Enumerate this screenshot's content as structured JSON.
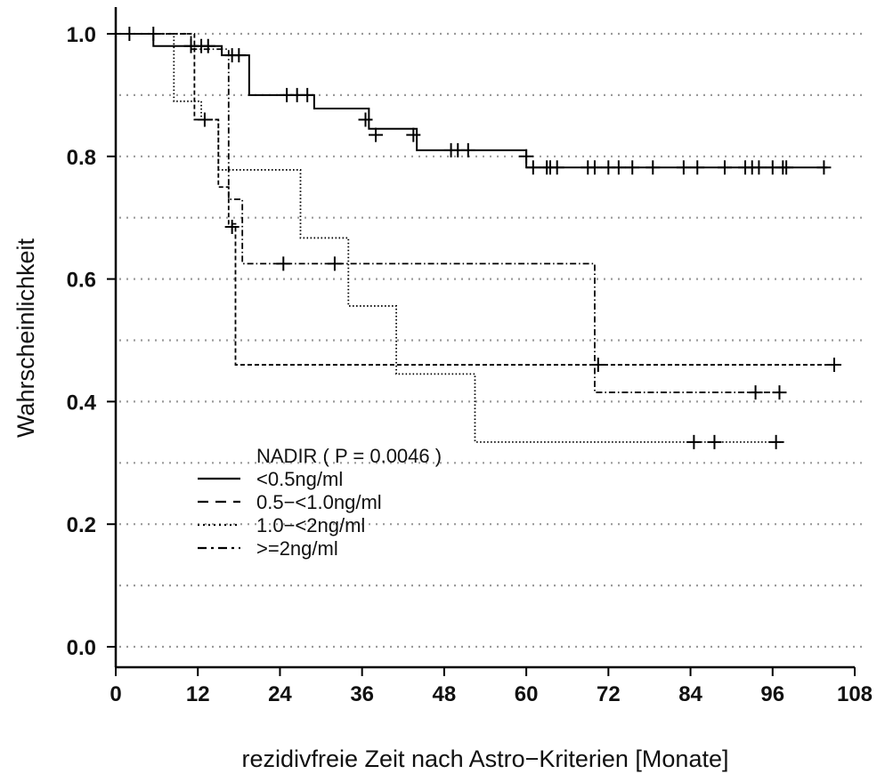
{
  "chart_data": {
    "type": "line",
    "subtype": "kaplan-meier",
    "title": "",
    "xlabel": "rezidivfreie Zeit nach Astro−Kriterien [Monate]",
    "ylabel": "Wahrscheinlichkeit",
    "xlim": [
      0,
      108
    ],
    "ylim": [
      0.0,
      1.0
    ],
    "x_ticks": [
      "0",
      "12",
      "24",
      "36",
      "48",
      "60",
      "72",
      "84",
      "96",
      "108"
    ],
    "y_ticks": [
      "0.0",
      "0.2",
      "0.4",
      "0.6",
      "0.8",
      "1.0"
    ],
    "grid": "horizontal-dotted",
    "legend_placement": "center-left",
    "legend_title": "NADIR ( P = 0.0046 )",
    "series": [
      {
        "name": "<0.5ng/ml",
        "line_style": "solid",
        "steps": [
          [
            0,
            1.0
          ],
          [
            5.5,
            0.98
          ],
          [
            15.5,
            0.965
          ],
          [
            19.5,
            0.9
          ],
          [
            29,
            0.878
          ],
          [
            37,
            0.845
          ],
          [
            44,
            0.81
          ],
          [
            60,
            0.782
          ],
          [
            104,
            0.782
          ]
        ],
        "censored": [
          [
            2,
            1.0
          ],
          [
            5.5,
            1.0
          ],
          [
            11,
            0.98
          ],
          [
            12.5,
            0.98
          ],
          [
            13.5,
            0.98
          ],
          [
            17,
            0.965
          ],
          [
            18,
            0.965
          ],
          [
            25,
            0.9
          ],
          [
            26.5,
            0.9
          ],
          [
            28,
            0.9
          ],
          [
            36.5,
            0.86
          ],
          [
            38,
            0.835
          ],
          [
            43.5,
            0.835
          ],
          [
            49,
            0.81
          ],
          [
            50,
            0.81
          ],
          [
            51.5,
            0.81
          ],
          [
            60,
            0.8
          ],
          [
            61,
            0.782
          ],
          [
            63,
            0.782
          ],
          [
            63.5,
            0.782
          ],
          [
            64.5,
            0.782
          ],
          [
            69,
            0.782
          ],
          [
            70,
            0.782
          ],
          [
            72,
            0.782
          ],
          [
            73.5,
            0.782
          ],
          [
            75.5,
            0.782
          ],
          [
            78.5,
            0.782
          ],
          [
            83,
            0.782
          ],
          [
            85,
            0.782
          ],
          [
            89,
            0.782
          ],
          [
            92,
            0.782
          ],
          [
            93,
            0.782
          ],
          [
            94,
            0.782
          ],
          [
            96,
            0.782
          ],
          [
            97.5,
            0.782
          ],
          [
            98,
            0.782
          ],
          [
            103.5,
            0.782
          ]
        ]
      },
      {
        "name": "0.5−<1.0ng/ml",
        "line_style": "dashed",
        "steps": [
          [
            0,
            1.0
          ],
          [
            11.5,
            0.86
          ],
          [
            15,
            0.75
          ],
          [
            16.5,
            0.69
          ],
          [
            17.5,
            0.46
          ],
          [
            105,
            0.46
          ]
        ],
        "censored": [
          [
            13,
            0.86
          ],
          [
            17,
            0.685
          ],
          [
            70.5,
            0.46
          ],
          [
            105,
            0.46
          ]
        ]
      },
      {
        "name": "1.0−<2ng/ml",
        "line_style": "dotted",
        "steps": [
          [
            0,
            1.0
          ],
          [
            8.5,
            0.89
          ],
          [
            12.5,
            0.86
          ],
          [
            15,
            0.778
          ],
          [
            27,
            0.667
          ],
          [
            34,
            0.556
          ],
          [
            41,
            0.445
          ],
          [
            52.5,
            0.334
          ],
          [
            98,
            0.334
          ]
        ],
        "censored": [
          [
            84.5,
            0.334
          ],
          [
            87.5,
            0.334
          ],
          [
            96.5,
            0.334
          ]
        ]
      },
      {
        "name": ">=2ng/ml",
        "line_style": "dashdot",
        "steps": [
          [
            0,
            1.0
          ],
          [
            11,
            0.975
          ],
          [
            16.5,
            0.73
          ],
          [
            18.5,
            0.625
          ],
          [
            70,
            0.415
          ],
          [
            97,
            0.415
          ]
        ],
        "censored": [
          [
            24.5,
            0.625
          ],
          [
            32,
            0.625
          ],
          [
            93.5,
            0.415
          ],
          [
            97,
            0.415
          ]
        ]
      }
    ]
  }
}
